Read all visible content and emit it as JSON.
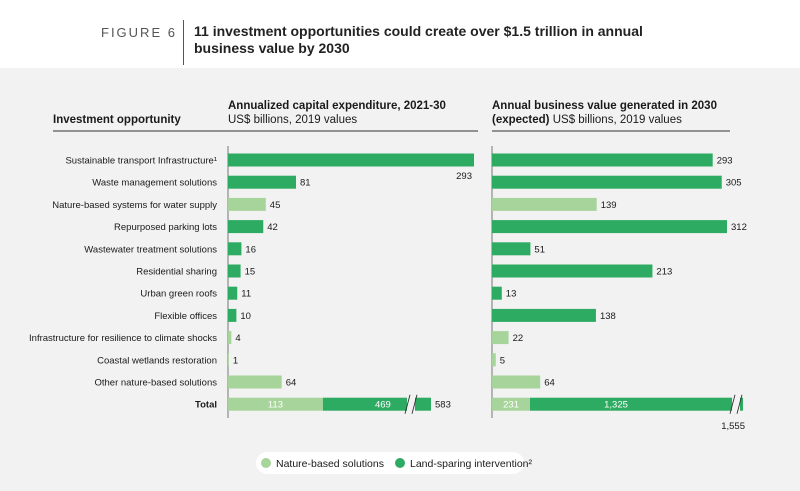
{
  "figure": {
    "label": "FIGURE 6",
    "title": "11 investment opportunities could create over $1.5 trillion in annual business value by 2030"
  },
  "colors": {
    "nature": "#a6d49a",
    "land": "#2eab62",
    "panel": "#f2f2f2"
  },
  "chart_data": {
    "type": "bar",
    "row_header": "Investment opportunity",
    "categories": [
      "Sustainable transport Infrastructure¹",
      "Waste management solutions",
      "Nature-based systems for water supply",
      "Repurposed parking lots",
      "Wastewater treatment solutions",
      "Residential sharing",
      "Urban green roofs",
      "Flexible offices",
      "Infrastructure for resilience to climate shocks",
      "Coastal wetlands restoration",
      "Other nature-based solutions"
    ],
    "category_type": [
      "land",
      "land",
      "nature",
      "land",
      "land",
      "land",
      "land",
      "land",
      "nature",
      "nature",
      "nature"
    ],
    "panels": [
      {
        "title_bold": "Annualized capital expenditure, 2021-30",
        "title_rest": "US$ billions, 2019 values",
        "values": [
          293,
          81,
          45,
          42,
          16,
          15,
          11,
          10,
          4,
          1,
          64
        ],
        "total": {
          "label": "Total",
          "nature": 113,
          "land": 469,
          "sum": 583
        }
      },
      {
        "title_bold": "Annual business value generated in 2030 (expected)",
        "title_rest": "US$ billions, 2019 values",
        "title_line1": "Annual business value generated in 2030",
        "title_line2_bold": "(expected)",
        "values": [
          293,
          305,
          139,
          312,
          51,
          213,
          13,
          138,
          22,
          5,
          64
        ],
        "total": {
          "label": "Total",
          "nature": 231,
          "land": 1325,
          "sum": 1555,
          "sum_label": "1,555",
          "land_label": "1,325"
        }
      }
    ]
  },
  "legend": [
    {
      "label": "Nature-based solutions",
      "type": "nature"
    },
    {
      "label": "Land-sparing intervention²",
      "type": "land"
    }
  ]
}
